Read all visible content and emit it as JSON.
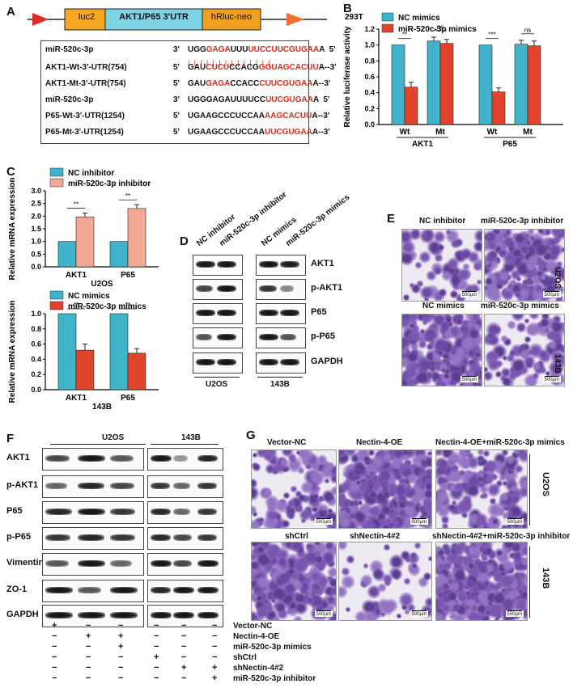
{
  "panels": {
    "A": "A",
    "B": "B",
    "C": "C",
    "D": "D",
    "E": "E",
    "F": "F",
    "G": "G"
  },
  "panelA": {
    "construct": {
      "luc2": "luc2",
      "utr": "AKT1/P65 3'UTR",
      "hrluc": "hRluc-neo"
    },
    "rows": [
      {
        "name": "miR-520c-3p",
        "p3": "3'",
        "seq_black1": "UGG",
        "seq_red1": "GAGA",
        "seq_black2": "UUU",
        "seq_red2": "UUCCUUCGUGAA",
        "seq_black3": "A",
        "end": "5'"
      },
      {
        "name": "AKT1-Wt-3'-UTR(754)",
        "p3": "5'",
        "seq_black1": "GAU",
        "seq_red1": "CUCU",
        "seq_black2": "CCACG",
        "seq_red2": "GGUAGCACUU",
        "seq_black3": "A--3'",
        "end": ""
      },
      {
        "name": "AKT1-Mt-3'-UTR(754)",
        "p3": "5'",
        "seq_black1": "GAU",
        "seq_red1": "GAGA",
        "seq_black2": "CCACC",
        "seq_red2": "CUUCGUGAA",
        "seq_black3": "A--3'",
        "end": ""
      },
      {
        "name": "miR-520c-3p",
        "p3": "3'",
        "seq_black1": "UGGGAGAUUUUCC",
        "seq_red1": "UUCGUGAA",
        "seq_black2": "",
        "seq_red2": "",
        "seq_black3": "A",
        "end": "5'"
      },
      {
        "name": "P65-Wt-3'-UTR(1254)",
        "p3": "5'",
        "seq_black1": "UGAAGCCCUCCAA",
        "seq_red1": "AAGCACUU",
        "seq_black2": "",
        "seq_red2": "",
        "seq_black3": "A--3'",
        "end": ""
      },
      {
        "name": "P65-Mt-3'-UTR(1254)",
        "p3": "5'",
        "seq_black1": "UGAAGCCCUCCAA",
        "seq_red1": "UUCGUGAA",
        "seq_black2": "",
        "seq_red2": "",
        "seq_black3": "A--3'",
        "end": ""
      }
    ],
    "pairing_marks": "| | | |   | |   | | | | | | | |"
  },
  "chart_data": [
    {
      "type": "bar",
      "id": "B",
      "title": "293T",
      "ylabel": "Relative luciferase activity",
      "ylim": [
        0,
        1.2
      ],
      "yticks": [
        "0.0",
        "0.2",
        "0.4",
        "0.6",
        "0.8",
        "1.0",
        "1.2"
      ],
      "categories": [
        "Wt",
        "Mt",
        "Wt",
        "Mt"
      ],
      "groups": [
        "AKT1",
        "P65"
      ],
      "series": [
        {
          "name": "NC mimics",
          "color": "#3fb3c9",
          "values": [
            1.0,
            1.05,
            1.0,
            1.01
          ],
          "err": [
            0,
            0.05,
            0,
            0.05
          ]
        },
        {
          "name": "miR-520c-3p mimics",
          "color": "#e0442c",
          "values": [
            0.47,
            1.02,
            0.41,
            0.99
          ],
          "err": [
            0.06,
            0.05,
            0.05,
            0.06
          ]
        }
      ],
      "sig": [
        "**",
        "ns",
        "***",
        "ns"
      ]
    },
    {
      "type": "bar",
      "id": "C1",
      "ylabel": "Relative mRNA  expression",
      "ylim": [
        0,
        3.0
      ],
      "yticks": [
        "0.0",
        "0.5",
        "1.0",
        "1.5",
        "2.0",
        "2.5",
        "3.0"
      ],
      "categories": [
        "AKT1",
        "P65"
      ],
      "xlabel": "U2OS",
      "series": [
        {
          "name": "NC inhibitor",
          "color": "#3fb3c9",
          "values": [
            1.0,
            1.0
          ],
          "err": [
            0,
            0
          ]
        },
        {
          "name": "miR-520c-3p inhibitor",
          "color": "#f2a994",
          "values": [
            1.97,
            2.3
          ],
          "err": [
            0.15,
            0.15
          ]
        }
      ],
      "sig": [
        "**",
        "**"
      ]
    },
    {
      "type": "bar",
      "id": "C2",
      "ylabel": "Relative mRNA  expression",
      "ylim": [
        0,
        1.0
      ],
      "yticks": [
        "0.0",
        "0.2",
        "0.4",
        "0.6",
        "0.8",
        "1.0"
      ],
      "categories": [
        "AKT1",
        "P65"
      ],
      "xlabel": "143B",
      "series": [
        {
          "name": "NC mimics",
          "color": "#3fb3c9",
          "values": [
            1.0,
            1.0
          ],
          "err": [
            0,
            0
          ]
        },
        {
          "name": "miR-520c-3p mimics",
          "color": "#e0442c",
          "values": [
            0.52,
            0.48
          ],
          "err": [
            0.08,
            0.06
          ]
        }
      ],
      "sig": [
        "**",
        "**"
      ]
    }
  ],
  "panelD": {
    "columns": [
      "NC inhibitor",
      "miR-520c-3p inhibitor",
      "NC mimics",
      "miR-520c-3p mimics"
    ],
    "rows": [
      "AKT1",
      "p-AKT1",
      "P65",
      "p-P65",
      "GAPDH"
    ],
    "cell_lines": [
      "U2OS",
      "143B"
    ]
  },
  "panelE": {
    "titles": [
      "NC inhibitor",
      "miR-520c-3p inhibitor",
      "NC mimics",
      "miR-520c-3p mimics"
    ],
    "cell_lines": [
      "U2OS",
      "143B"
    ],
    "scale": "500µm"
  },
  "panelF": {
    "cell_lines": [
      "U2OS",
      "143B"
    ],
    "rows": [
      "AKT1",
      "p-AKT1",
      "P65",
      "p-P65",
      "Vimentin",
      "ZO-1",
      "GAPDH"
    ],
    "conditions": [
      {
        "label": "Vector-NC",
        "marks": [
          "+",
          "−",
          "−",
          "−",
          "−",
          "−"
        ]
      },
      {
        "label": "Nectin-4-OE",
        "marks": [
          "−",
          "+",
          "+",
          "−",
          "−",
          "−"
        ]
      },
      {
        "label": "miR-520c-3p mimics",
        "marks": [
          "−",
          "−",
          "+",
          "−",
          "−",
          "−"
        ]
      },
      {
        "label": "shCtrl",
        "marks": [
          "−",
          "−",
          "−",
          "+",
          "−",
          "−"
        ]
      },
      {
        "label": "shNectin-4#2",
        "marks": [
          "−",
          "−",
          "−",
          "−",
          "+",
          "+"
        ]
      },
      {
        "label": "miR-520c-3p inhibitor",
        "marks": [
          "−",
          "−",
          "−",
          "−",
          "−",
          "+"
        ]
      }
    ]
  },
  "panelG": {
    "titles": [
      "Vector-NC",
      "Nectin-4-OE",
      "Nectin-4-OE+miR-520c-3p mimics",
      "shCtrl",
      "shNectin-4#2",
      "shNectin-4#2+miR-520c-3p inhibitor"
    ],
    "cell_lines": [
      "U2OS",
      "143B"
    ],
    "scale": "500µm"
  }
}
